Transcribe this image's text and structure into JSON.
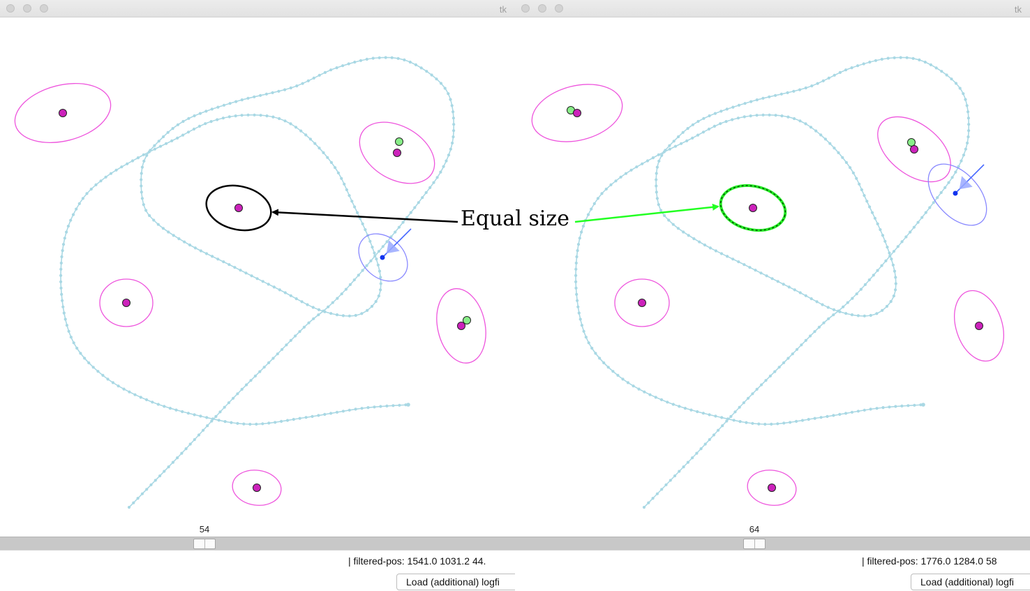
{
  "windows": [
    {
      "title": "tk",
      "slider_value": "54",
      "status_text": "| filtered-pos: 1541.0 1031.2 44.",
      "load_button": "Load (additional) logfi",
      "highlight_style": "black-solid"
    },
    {
      "title": "tk",
      "slider_value": "64",
      "status_text": "| filtered-pos: 1776.0 1284.0 58",
      "load_button": "Load (additional) logfi",
      "highlight_style": "green-dashed"
    }
  ],
  "annotation": {
    "text": "Equal size",
    "left_arrow_color": "#000000",
    "right_arrow_color": "#22ff22"
  },
  "colors": {
    "trajectory": "#a9d8e4",
    "landmark": "#cc22bb",
    "landmark_ellipse": "#ee55dd",
    "observed_landmark": "#88ee88",
    "robot": "#1133ee",
    "robot_ellipse": "#8888ff"
  }
}
